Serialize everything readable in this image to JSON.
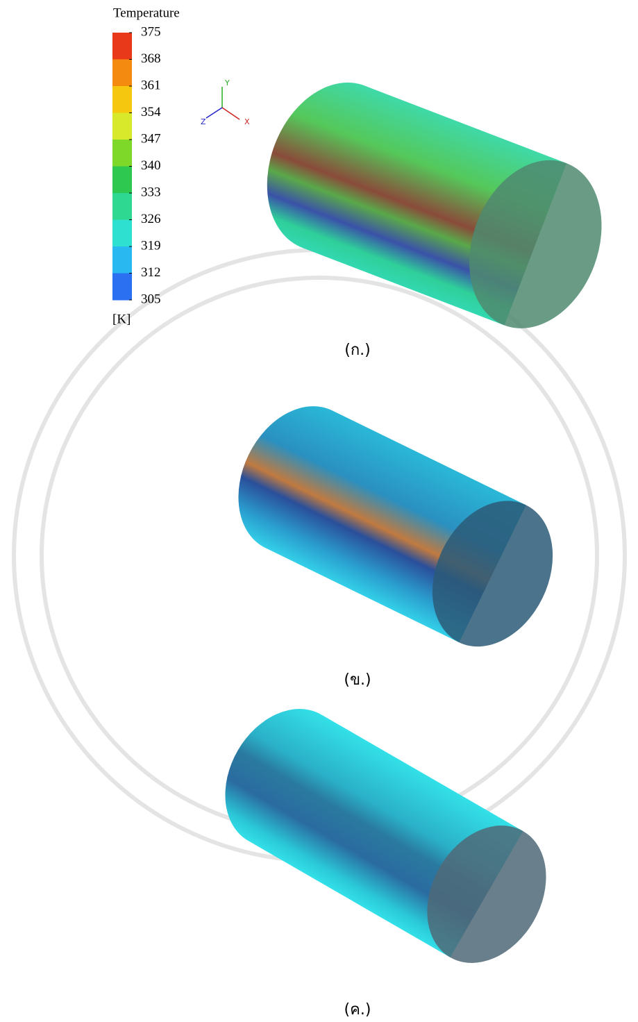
{
  "legend": {
    "title": "Temperature",
    "ticks": [
      375,
      368,
      361,
      354,
      347,
      340,
      333,
      326,
      319,
      312,
      305
    ],
    "unit": "[K]"
  },
  "axes": {
    "y": "Y",
    "x": "X",
    "z": "Z"
  },
  "captions": [
    "(ก.)",
    "(ข.)",
    "(ค.)"
  ]
}
